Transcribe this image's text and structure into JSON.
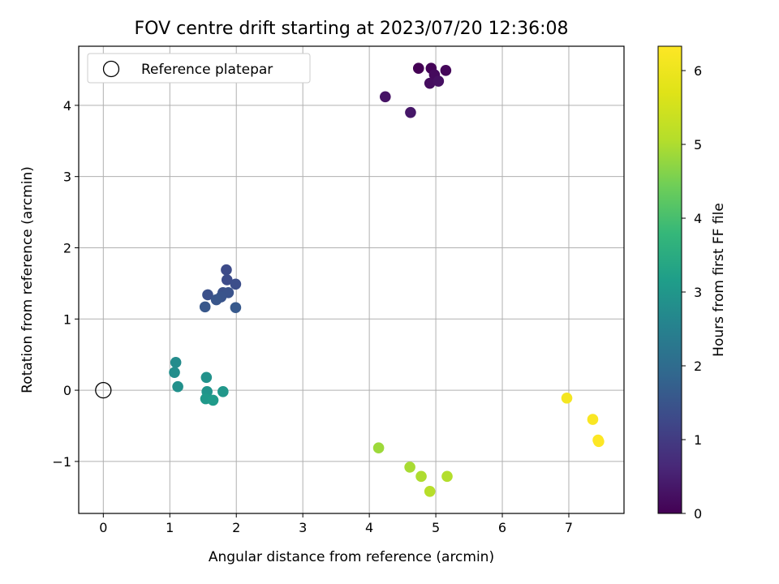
{
  "chart_data": {
    "type": "scatter",
    "title": "FOV centre drift starting at 2023/07/20 12:36:08",
    "xlabel": "Angular distance from reference (arcmin)",
    "ylabel": "Rotation from reference (arcmin)",
    "xlim": [
      -0.37,
      7.83
    ],
    "ylim": [
      -1.73,
      4.83
    ],
    "xticks": [
      0,
      1,
      2,
      3,
      4,
      5,
      6,
      7
    ],
    "yticks": [
      -1,
      0,
      1,
      2,
      3,
      4
    ],
    "xtick_labels": [
      "0",
      "1",
      "2",
      "3",
      "4",
      "5",
      "6",
      "7"
    ],
    "ytick_labels": [
      "−1",
      "0",
      "1",
      "2",
      "3",
      "4"
    ],
    "grid": true,
    "legend": {
      "placement": "top-left",
      "entries": [
        "Reference platepar"
      ]
    },
    "reference_point": {
      "x": 0,
      "y": 0
    },
    "colorbar": {
      "label": "Hours from first FF file",
      "range": [
        0,
        6.33
      ],
      "ticks": [
        0,
        1,
        2,
        3,
        4,
        5,
        6
      ],
      "tick_labels": [
        "0",
        "1",
        "2",
        "3",
        "4",
        "5",
        "6"
      ],
      "colormap": "viridis"
    },
    "points": [
      {
        "x": 4.74,
        "y": 4.52,
        "hours": 0.0
      },
      {
        "x": 4.93,
        "y": 4.52,
        "hours": 0.05
      },
      {
        "x": 5.15,
        "y": 4.49,
        "hours": 0.1
      },
      {
        "x": 4.98,
        "y": 4.43,
        "hours": 0.15
      },
      {
        "x": 4.91,
        "y": 4.31,
        "hours": 0.2
      },
      {
        "x": 5.04,
        "y": 4.34,
        "hours": 0.25
      },
      {
        "x": 4.24,
        "y": 4.12,
        "hours": 0.3
      },
      {
        "x": 4.62,
        "y": 3.9,
        "hours": 0.35
      },
      {
        "x": 1.85,
        "y": 1.69,
        "hours": 1.3
      },
      {
        "x": 1.86,
        "y": 1.55,
        "hours": 1.33
      },
      {
        "x": 1.99,
        "y": 1.49,
        "hours": 1.36
      },
      {
        "x": 1.57,
        "y": 1.34,
        "hours": 1.4
      },
      {
        "x": 1.8,
        "y": 1.37,
        "hours": 1.43
      },
      {
        "x": 1.88,
        "y": 1.37,
        "hours": 1.46
      },
      {
        "x": 1.77,
        "y": 1.31,
        "hours": 1.5
      },
      {
        "x": 1.7,
        "y": 1.27,
        "hours": 1.53
      },
      {
        "x": 1.53,
        "y": 1.17,
        "hours": 1.56
      },
      {
        "x": 1.99,
        "y": 1.16,
        "hours": 1.6
      },
      {
        "x": 1.09,
        "y": 0.39,
        "hours": 2.75
      },
      {
        "x": 1.07,
        "y": 0.25,
        "hours": 2.8
      },
      {
        "x": 1.12,
        "y": 0.05,
        "hours": 2.85
      },
      {
        "x": 1.55,
        "y": 0.18,
        "hours": 2.9
      },
      {
        "x": 1.56,
        "y": -0.02,
        "hours": 2.95
      },
      {
        "x": 1.8,
        "y": -0.02,
        "hours": 3.0
      },
      {
        "x": 1.54,
        "y": -0.12,
        "hours": 3.05
      },
      {
        "x": 1.65,
        "y": -0.14,
        "hours": 3.1
      },
      {
        "x": 4.14,
        "y": -0.81,
        "hours": 4.85
      },
      {
        "x": 4.61,
        "y": -1.08,
        "hours": 4.95
      },
      {
        "x": 4.78,
        "y": -1.21,
        "hours": 5.0
      },
      {
        "x": 5.17,
        "y": -1.21,
        "hours": 5.05
      },
      {
        "x": 4.91,
        "y": -1.42,
        "hours": 5.1
      },
      {
        "x": 6.97,
        "y": -0.11,
        "hours": 6.15
      },
      {
        "x": 7.36,
        "y": -0.41,
        "hours": 6.25
      },
      {
        "x": 7.44,
        "y": -0.7,
        "hours": 6.3
      },
      {
        "x": 7.45,
        "y": -0.72,
        "hours": 6.33
      }
    ]
  }
}
